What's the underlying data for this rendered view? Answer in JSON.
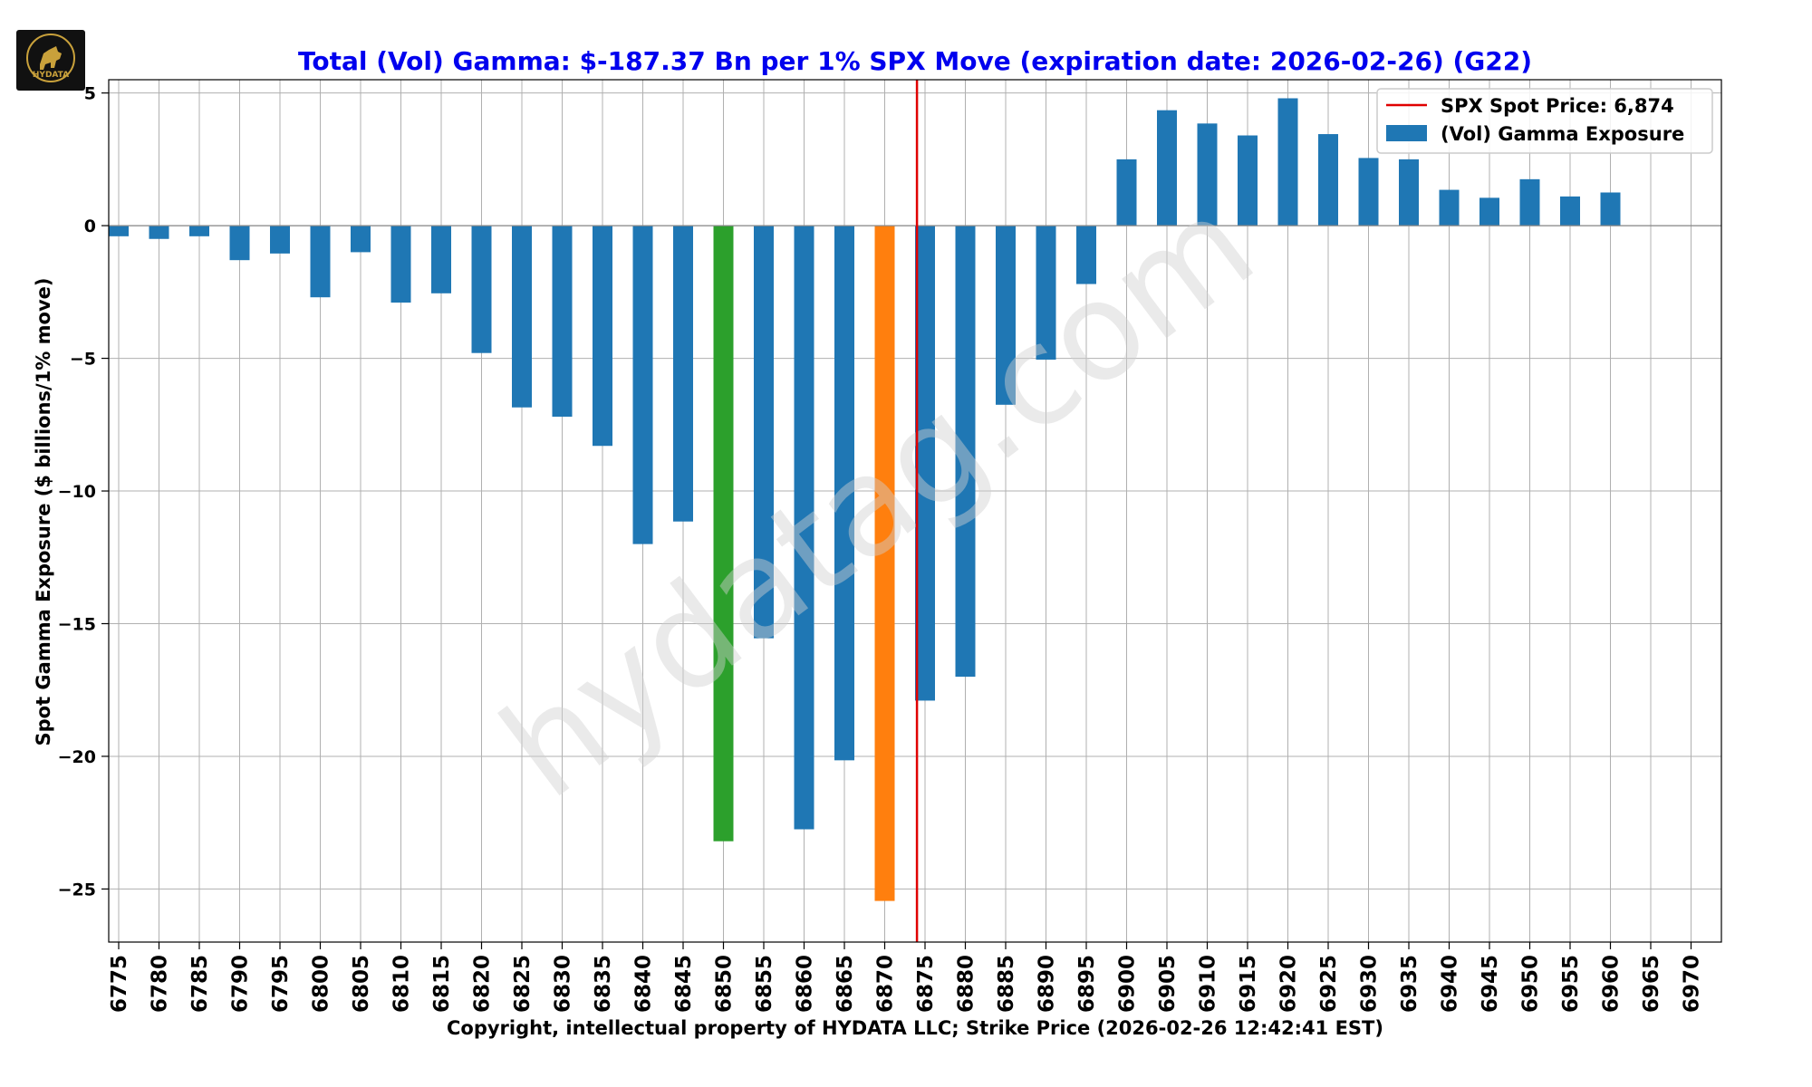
{
  "chart_data": {
    "type": "bar",
    "title": "Total (Vol) Gamma: $-187.37 Bn per 1% SPX Move (expiration date: 2026-02-26) (G22)",
    "xlabel": "Copyright, intellectual property of HYDATA LLC; Strike Price (2026-02-26 12:42:41 EST)",
    "ylabel": "Spot Gamma Exposure ($ billions/1% move)",
    "ylim": [
      -27,
      5.5
    ],
    "yticks": [
      5,
      0,
      -5,
      -10,
      -15,
      -20,
      -25
    ],
    "ytick_labels": [
      "5",
      "0",
      "−5",
      "−10",
      "−15",
      "−20",
      "−25"
    ],
    "grid": true,
    "legend_position": "top-right",
    "categories": [
      "6775",
      "6780",
      "6785",
      "6790",
      "6795",
      "6800",
      "6805",
      "6810",
      "6815",
      "6820",
      "6825",
      "6830",
      "6835",
      "6840",
      "6845",
      "6850",
      "6855",
      "6860",
      "6865",
      "6870",
      "6875",
      "6880",
      "6885",
      "6890",
      "6895",
      "6900",
      "6905",
      "6910",
      "6915",
      "6920",
      "6925",
      "6930",
      "6935",
      "6940",
      "6945",
      "6950",
      "6955",
      "6960",
      "6965",
      "6970"
    ],
    "values": [
      -0.4,
      -0.5,
      -0.4,
      -1.3,
      -1.05,
      -2.7,
      -1.0,
      -2.9,
      -2.55,
      -4.8,
      -6.85,
      -7.2,
      -8.3,
      -12.0,
      -11.15,
      -23.2,
      -15.55,
      -22.75,
      -20.15,
      -25.45,
      -17.9,
      -17.0,
      -6.75,
      -5.05,
      -2.2,
      2.5,
      4.35,
      3.85,
      3.4,
      4.8,
      3.45,
      2.55,
      2.5,
      1.35,
      1.05,
      1.75,
      1.1,
      1.25,
      0,
      0
    ],
    "bar_colors": {
      "6850": "#2ca02c",
      "6870": "#ff7f0e"
    },
    "default_bar_color": "#1f77b4",
    "spot_price": 6874,
    "spot_line_color": "#e00000",
    "title_color": "#0000ee",
    "watermark": "hydatag.com",
    "legend": [
      {
        "label": "SPX Spot Price: 6,874",
        "kind": "line",
        "color": "#e00000"
      },
      {
        "label": "(Vol) Gamma Exposure",
        "kind": "patch",
        "color": "#1f77b4"
      }
    ]
  },
  "logo": {
    "text": "HYDATA"
  }
}
